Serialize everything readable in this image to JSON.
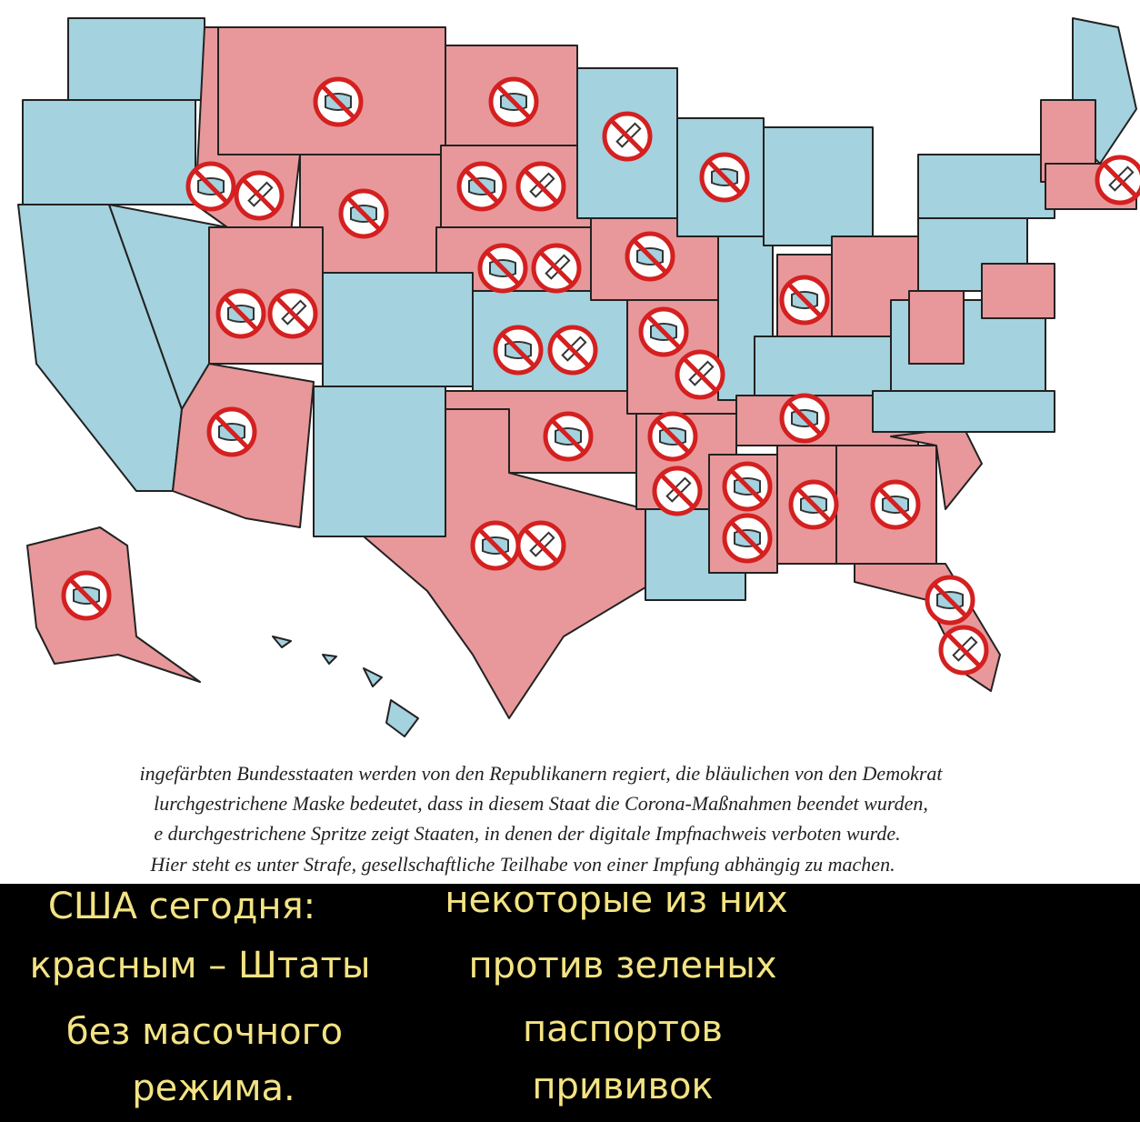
{
  "caption": {
    "lines": [
      "ingefärbten Bundesstaaten werden von den Republikanern regiert, die bläulichen von den Demokrat",
      "lurchgestrichene Maske bedeutet, dass in diesem Staat die Corona-Maßnahmen beendet wurden,",
      "e durchgestrichene Spritze zeigt Staaten, in denen der digitale Impfnachweis verboten wurde.",
      "Hier steht es unter Strafe, gesellschaftliche Teilhabe von einer Impfung abhängig zu machen."
    ]
  },
  "overlay": {
    "left": [
      "США сегодня:",
      "красным – Штаты",
      "без масочного",
      "режима."
    ],
    "right": [
      "некоторые из них",
      "против зеленых",
      "паспортов",
      "прививок"
    ]
  }
}
